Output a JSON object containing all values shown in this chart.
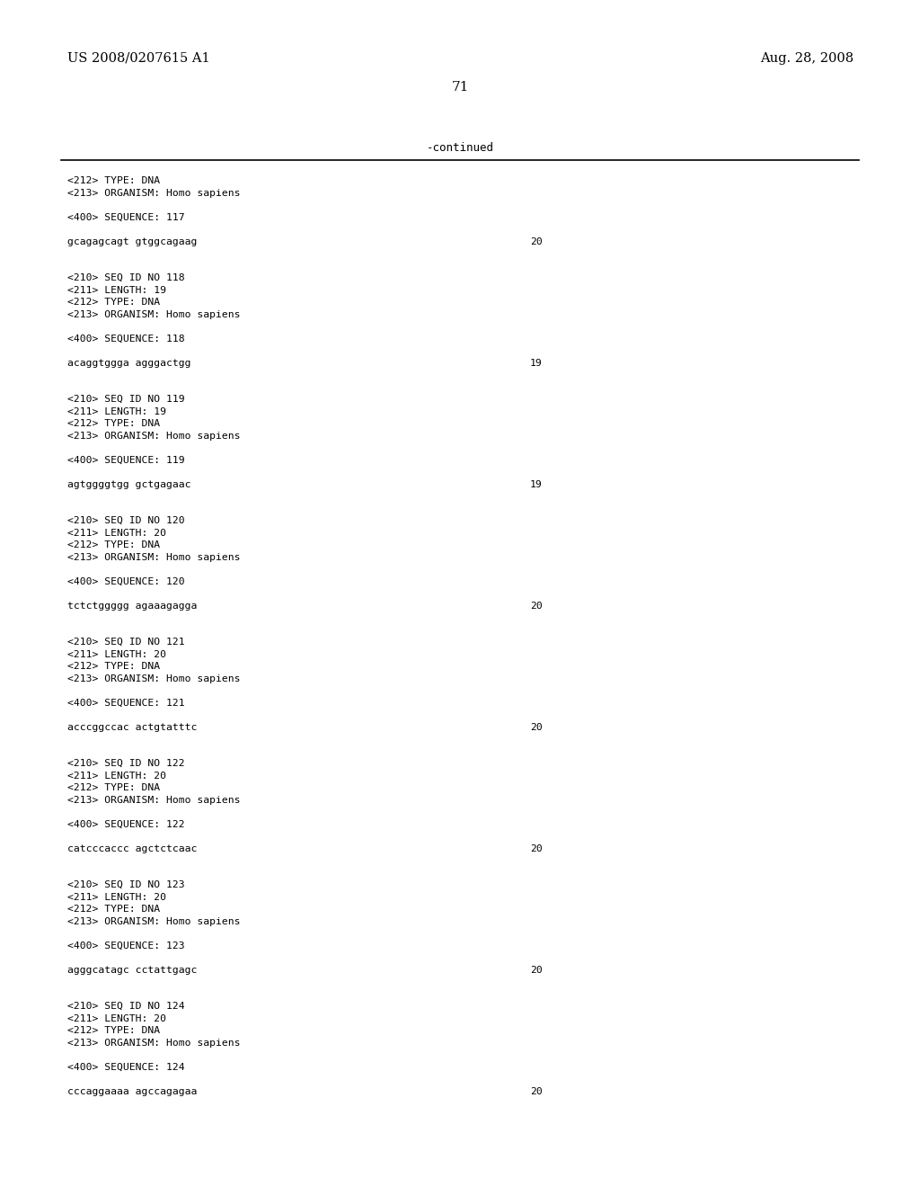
{
  "bg_color": "#ffffff",
  "header_left": "US 2008/0207615 A1",
  "header_right": "Aug. 28, 2008",
  "page_number": "71",
  "continued_label": "-continued",
  "content_font_size": 8.2,
  "header_font_size": 10.5,
  "page_num_font_size": 11.0,
  "sections": [
    {
      "meta": [
        "<212> TYPE: DNA",
        "<213> ORGANISM: Homo sapiens"
      ],
      "seq_label": "<400> SEQUENCE: 117",
      "seq_data": "gcagagcagt gtggcagaag",
      "seq_num": "20"
    },
    {
      "meta": [
        "<210> SEQ ID NO 118",
        "<211> LENGTH: 19",
        "<212> TYPE: DNA",
        "<213> ORGANISM: Homo sapiens"
      ],
      "seq_label": "<400> SEQUENCE: 118",
      "seq_data": "acaggtggga agggactgg",
      "seq_num": "19"
    },
    {
      "meta": [
        "<210> SEQ ID NO 119",
        "<211> LENGTH: 19",
        "<212> TYPE: DNA",
        "<213> ORGANISM: Homo sapiens"
      ],
      "seq_label": "<400> SEQUENCE: 119",
      "seq_data": "agtggggtgg gctgagaac",
      "seq_num": "19"
    },
    {
      "meta": [
        "<210> SEQ ID NO 120",
        "<211> LENGTH: 20",
        "<212> TYPE: DNA",
        "<213> ORGANISM: Homo sapiens"
      ],
      "seq_label": "<400> SEQUENCE: 120",
      "seq_data": "tctctggggg agaaagagga",
      "seq_num": "20"
    },
    {
      "meta": [
        "<210> SEQ ID NO 121",
        "<211> LENGTH: 20",
        "<212> TYPE: DNA",
        "<213> ORGANISM: Homo sapiens"
      ],
      "seq_label": "<400> SEQUENCE: 121",
      "seq_data": "acccggccac actgtatttc",
      "seq_num": "20"
    },
    {
      "meta": [
        "<210> SEQ ID NO 122",
        "<211> LENGTH: 20",
        "<212> TYPE: DNA",
        "<213> ORGANISM: Homo sapiens"
      ],
      "seq_label": "<400> SEQUENCE: 122",
      "seq_data": "catcccaccc agctctcaac",
      "seq_num": "20"
    },
    {
      "meta": [
        "<210> SEQ ID NO 123",
        "<211> LENGTH: 20",
        "<212> TYPE: DNA",
        "<213> ORGANISM: Homo sapiens"
      ],
      "seq_label": "<400> SEQUENCE: 123",
      "seq_data": "agggcatagc cctattgagc",
      "seq_num": "20"
    },
    {
      "meta": [
        "<210> SEQ ID NO 124",
        "<211> LENGTH: 20",
        "<212> TYPE: DNA",
        "<213> ORGANISM: Homo sapiens"
      ],
      "seq_label": "<400> SEQUENCE: 124",
      "seq_data": "cccaggaaaa agccagagaa",
      "seq_num": "20"
    }
  ]
}
